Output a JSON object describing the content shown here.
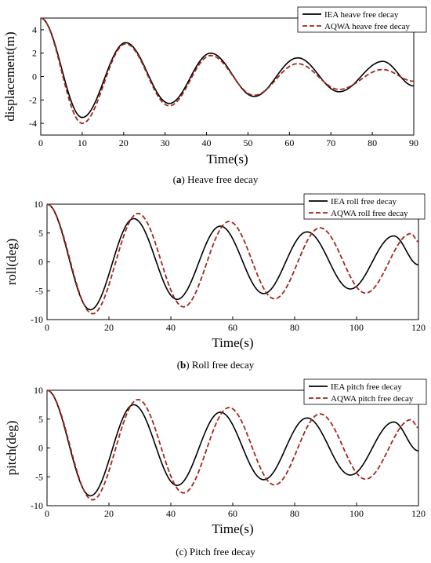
{
  "chart_data": [
    {
      "type": "line",
      "caption_letter": "a",
      "caption_text": "Heave free decay",
      "xlabel": "Time(s)",
      "ylabel": "displacement(m)",
      "xlim": [
        0,
        90
      ],
      "ylim": [
        -5,
        5
      ],
      "xticks": [
        0,
        10,
        20,
        30,
        40,
        50,
        60,
        70,
        80,
        90
      ],
      "yticks": [
        -4,
        -2,
        0,
        2,
        4
      ],
      "grid": false,
      "legend": "top-right",
      "series": [
        {
          "name": "IEA heave free decay",
          "color": "#000000",
          "style": "solid",
          "x": [
            0,
            10,
            20.5,
            31,
            41,
            51.5,
            62,
            72,
            82.5,
            90
          ],
          "y": [
            5.0,
            -3.5,
            2.9,
            -2.3,
            2.0,
            -1.7,
            1.6,
            -1.3,
            1.3,
            -0.8
          ]
        },
        {
          "name": "AQWA heave free decay",
          "color": "#a0281e",
          "style": "dashed",
          "x": [
            0,
            10,
            20.5,
            31,
            41,
            51.5,
            62,
            72,
            82.5,
            90
          ],
          "y": [
            5.0,
            -4.0,
            2.8,
            -2.5,
            1.8,
            -1.6,
            1.1,
            -1.1,
            0.6,
            -0.4
          ]
        }
      ]
    },
    {
      "type": "line",
      "caption_letter": "b",
      "caption_text": "Roll free decay",
      "xlabel": "Time(s)",
      "ylabel": "roll(deg)",
      "xlim": [
        0,
        120
      ],
      "ylim": [
        -10,
        10
      ],
      "xticks": [
        0,
        20,
        40,
        60,
        80,
        100,
        120
      ],
      "yticks": [
        -10,
        -5,
        0,
        5,
        10
      ],
      "grid": false,
      "legend": "top-right",
      "series": [
        {
          "name": "IEA roll free decay",
          "color": "#000000",
          "style": "solid",
          "x": [
            0,
            14,
            28,
            42,
            56,
            70,
            84,
            98,
            112,
            120
          ],
          "y": [
            10.0,
            -8.3,
            7.5,
            -6.5,
            6.2,
            -5.5,
            5.2,
            -4.7,
            4.5,
            -0.5
          ]
        },
        {
          "name": "AQWA roll free decay",
          "color": "#a0281e",
          "style": "dashed",
          "x": [
            0,
            14.7,
            29.4,
            44.1,
            58.8,
            73.5,
            88.2,
            102.9,
            117.6,
            120
          ],
          "y": [
            10.0,
            -9.0,
            8.4,
            -7.8,
            7.0,
            -6.4,
            5.9,
            -5.4,
            4.9,
            3.5
          ]
        }
      ]
    },
    {
      "type": "line",
      "caption_letter": "c",
      "caption_text": "Pitch free decay",
      "xlabel": "Time(s)",
      "ylabel": "pitch(deg)",
      "xlim": [
        0,
        120
      ],
      "ylim": [
        -10,
        10
      ],
      "xticks": [
        0,
        20,
        40,
        60,
        80,
        100,
        120
      ],
      "yticks": [
        -10,
        -5,
        0,
        5,
        10
      ],
      "grid": false,
      "legend": "top-right",
      "series": [
        {
          "name": "IEA pitch free decay",
          "color": "#000000",
          "style": "solid",
          "x": [
            0,
            14,
            28,
            42,
            56,
            70,
            84,
            98,
            112,
            120
          ],
          "y": [
            10.0,
            -8.3,
            7.5,
            -6.5,
            6.2,
            -5.5,
            5.2,
            -4.7,
            4.5,
            -0.5
          ]
        },
        {
          "name": "AQWA pitch free decay",
          "color": "#a0281e",
          "style": "dashed",
          "x": [
            0,
            14.7,
            29.4,
            44.1,
            58.8,
            73.5,
            88.2,
            102.9,
            117.6,
            120
          ],
          "y": [
            10.0,
            -9.0,
            8.4,
            -7.8,
            7.0,
            -6.4,
            5.9,
            -5.4,
            4.9,
            3.5
          ]
        }
      ]
    }
  ]
}
